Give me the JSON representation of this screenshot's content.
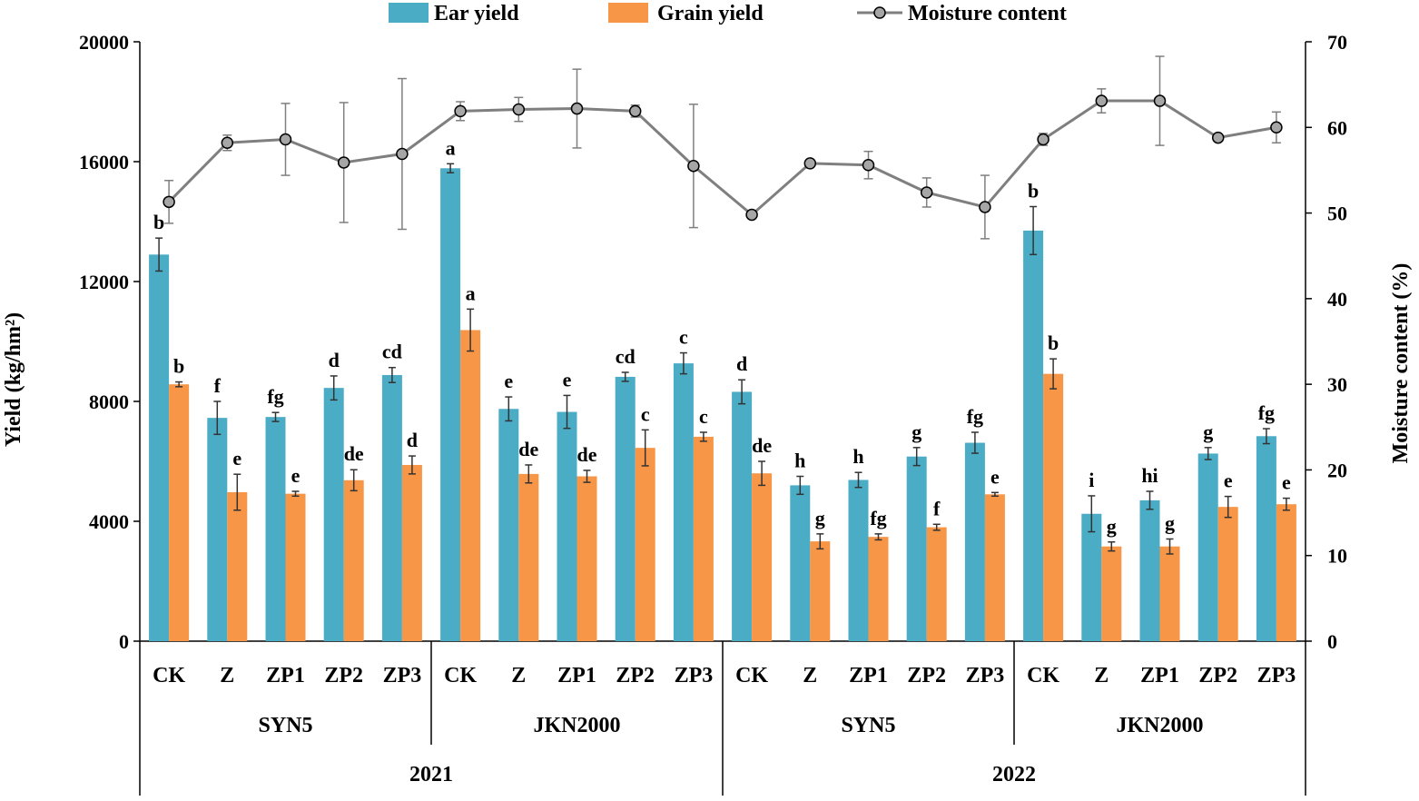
{
  "chart_data": {
    "type": "bar+line",
    "legend": {
      "ear_yield": "Ear yield",
      "grain_yield": "Grain yield",
      "moisture": "Moisture content",
      "placement": "top-center"
    },
    "colors": {
      "ear": "#4bacc6",
      "grain": "#f79646",
      "line": "#7f7f7f",
      "marker_fill": "#a6a6a6"
    },
    "ylabel_left": "Yield (kg/hm²)",
    "ylabel_right": "Moisture content (%)",
    "ylim_left": [
      0,
      20000
    ],
    "yticks_left": [
      "0",
      "4000",
      "8000",
      "12000",
      "16000",
      "20000"
    ],
    "ylim_right": [
      0,
      70
    ],
    "yticks_right": [
      "0",
      "10",
      "20",
      "30",
      "40",
      "50",
      "60",
      "70"
    ],
    "categories": [
      "CK",
      "Z",
      "ZP1",
      "ZP2",
      "ZP3",
      "CK",
      "Z",
      "ZP1",
      "ZP2",
      "ZP3",
      "CK",
      "Z",
      "ZP1",
      "ZP2",
      "ZP3",
      "CK",
      "Z",
      "ZP1",
      "ZP2",
      "ZP3"
    ],
    "varieties": [
      "SYN5",
      "JKN2000",
      "SYN5",
      "JKN2000"
    ],
    "years": [
      "2021",
      "2022"
    ],
    "series": [
      {
        "name": "Ear yield",
        "values": [
          12900,
          7450,
          7480,
          8450,
          8880,
          15780,
          7750,
          7650,
          8820,
          9270,
          8320,
          5200,
          5380,
          6160,
          6620,
          13700,
          4250,
          4700,
          6260,
          6840
        ],
        "errors": [
          550,
          550,
          150,
          400,
          250,
          150,
          400,
          550,
          150,
          350,
          400,
          300,
          250,
          300,
          350,
          800,
          600,
          300,
          200,
          250
        ],
        "labels": [
          "b",
          "f",
          "fg",
          "d",
          "cd",
          "a",
          "e",
          "e",
          "cd",
          "c",
          "d",
          "h",
          "h",
          "g",
          "fg",
          "b",
          "i",
          "hi",
          "g",
          "fg"
        ]
      },
      {
        "name": "Grain yield",
        "values": [
          8570,
          4970,
          4920,
          5370,
          5880,
          10380,
          5580,
          5500,
          6450,
          6820,
          5600,
          3330,
          3480,
          3800,
          4900,
          8920,
          3160,
          3160,
          4480,
          4570
        ],
        "errors": [
          80,
          600,
          80,
          350,
          300,
          700,
          300,
          200,
          600,
          150,
          400,
          250,
          100,
          100,
          60,
          500,
          150,
          250,
          350,
          200
        ],
        "labels": [
          "b",
          "e",
          "e",
          "de",
          "d",
          "a",
          "de",
          "de",
          "c",
          "c",
          "de",
          "g",
          "fg",
          "f",
          "e",
          "b",
          "g",
          "g",
          "e",
          "e"
        ]
      },
      {
        "name": "Moisture content",
        "values": [
          51.3,
          58.2,
          58.6,
          55.9,
          56.9,
          61.9,
          62.1,
          62.2,
          61.9,
          55.5,
          49.8,
          55.8,
          55.6,
          52.4,
          50.7,
          58.6,
          63.1,
          63.1,
          58.8,
          60.0
        ],
        "errors": [
          2.5,
          0.9,
          4.2,
          7.0,
          8.8,
          1.1,
          1.4,
          4.6,
          0.7,
          7.2,
          0,
          0,
          1.6,
          1.7,
          3.7,
          0.7,
          1.4,
          5.2,
          0,
          1.8
        ]
      }
    ]
  }
}
